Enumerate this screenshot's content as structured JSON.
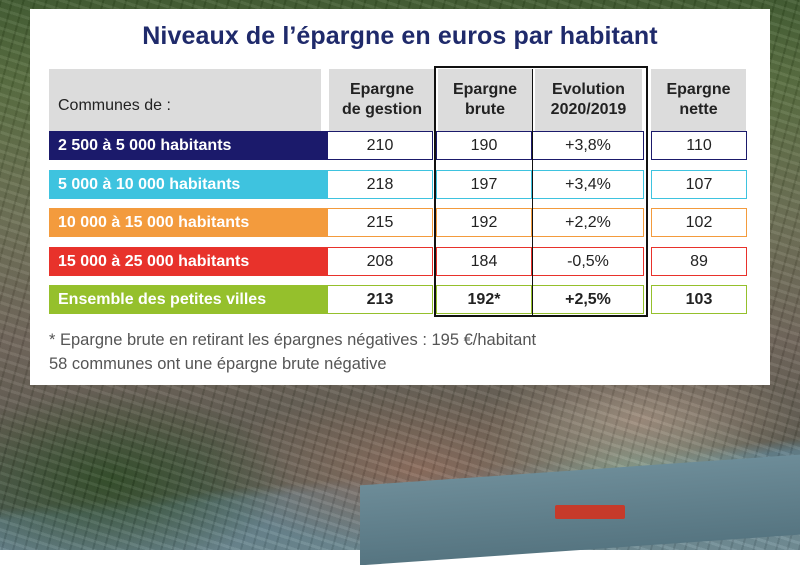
{
  "title": "Niveaux de l’épargne en euros par habitant",
  "header": {
    "communes": "Communes de :",
    "col1_l1": "Epargne",
    "col1_l2": "de gestion",
    "col2_l1": "Epargne",
    "col2_l2": "brute",
    "col3_l1": "Evolution",
    "col3_l2": "2020/2019",
    "col4_l1": "Epargne",
    "col4_l2": "nette"
  },
  "rows": [
    {
      "label": "2 500 à 5 000 habitants",
      "color": "#1b1a6b",
      "gestion": "210",
      "brute": "190",
      "evolution": "+3,8%",
      "nette": "110"
    },
    {
      "label": "5 000 à 10 000 habitants",
      "color": "#3ec3df",
      "gestion": "218",
      "brute": "197",
      "evolution": "+3,4%",
      "nette": "107"
    },
    {
      "label": "10 000 à 15 000 habitants",
      "color": "#f39b3d",
      "gestion": "215",
      "brute": "192",
      "evolution": "+2,2%",
      "nette": "102"
    },
    {
      "label": "15 000 à 25 000 habitants",
      "color": "#e8322b",
      "gestion": "208",
      "brute": "184",
      "evolution": "-0,5%",
      "nette": "89"
    },
    {
      "label": "Ensemble des petites villes",
      "color": "#95c02c",
      "gestion": "213",
      "brute": "192*",
      "evolution": "+2,5%",
      "nette": "103"
    }
  ],
  "notes": {
    "line1": "* Epargne brute en retirant les épargnes négatives : 195 €/habitant",
    "line2": "58 communes ont une épargne brute négative"
  }
}
